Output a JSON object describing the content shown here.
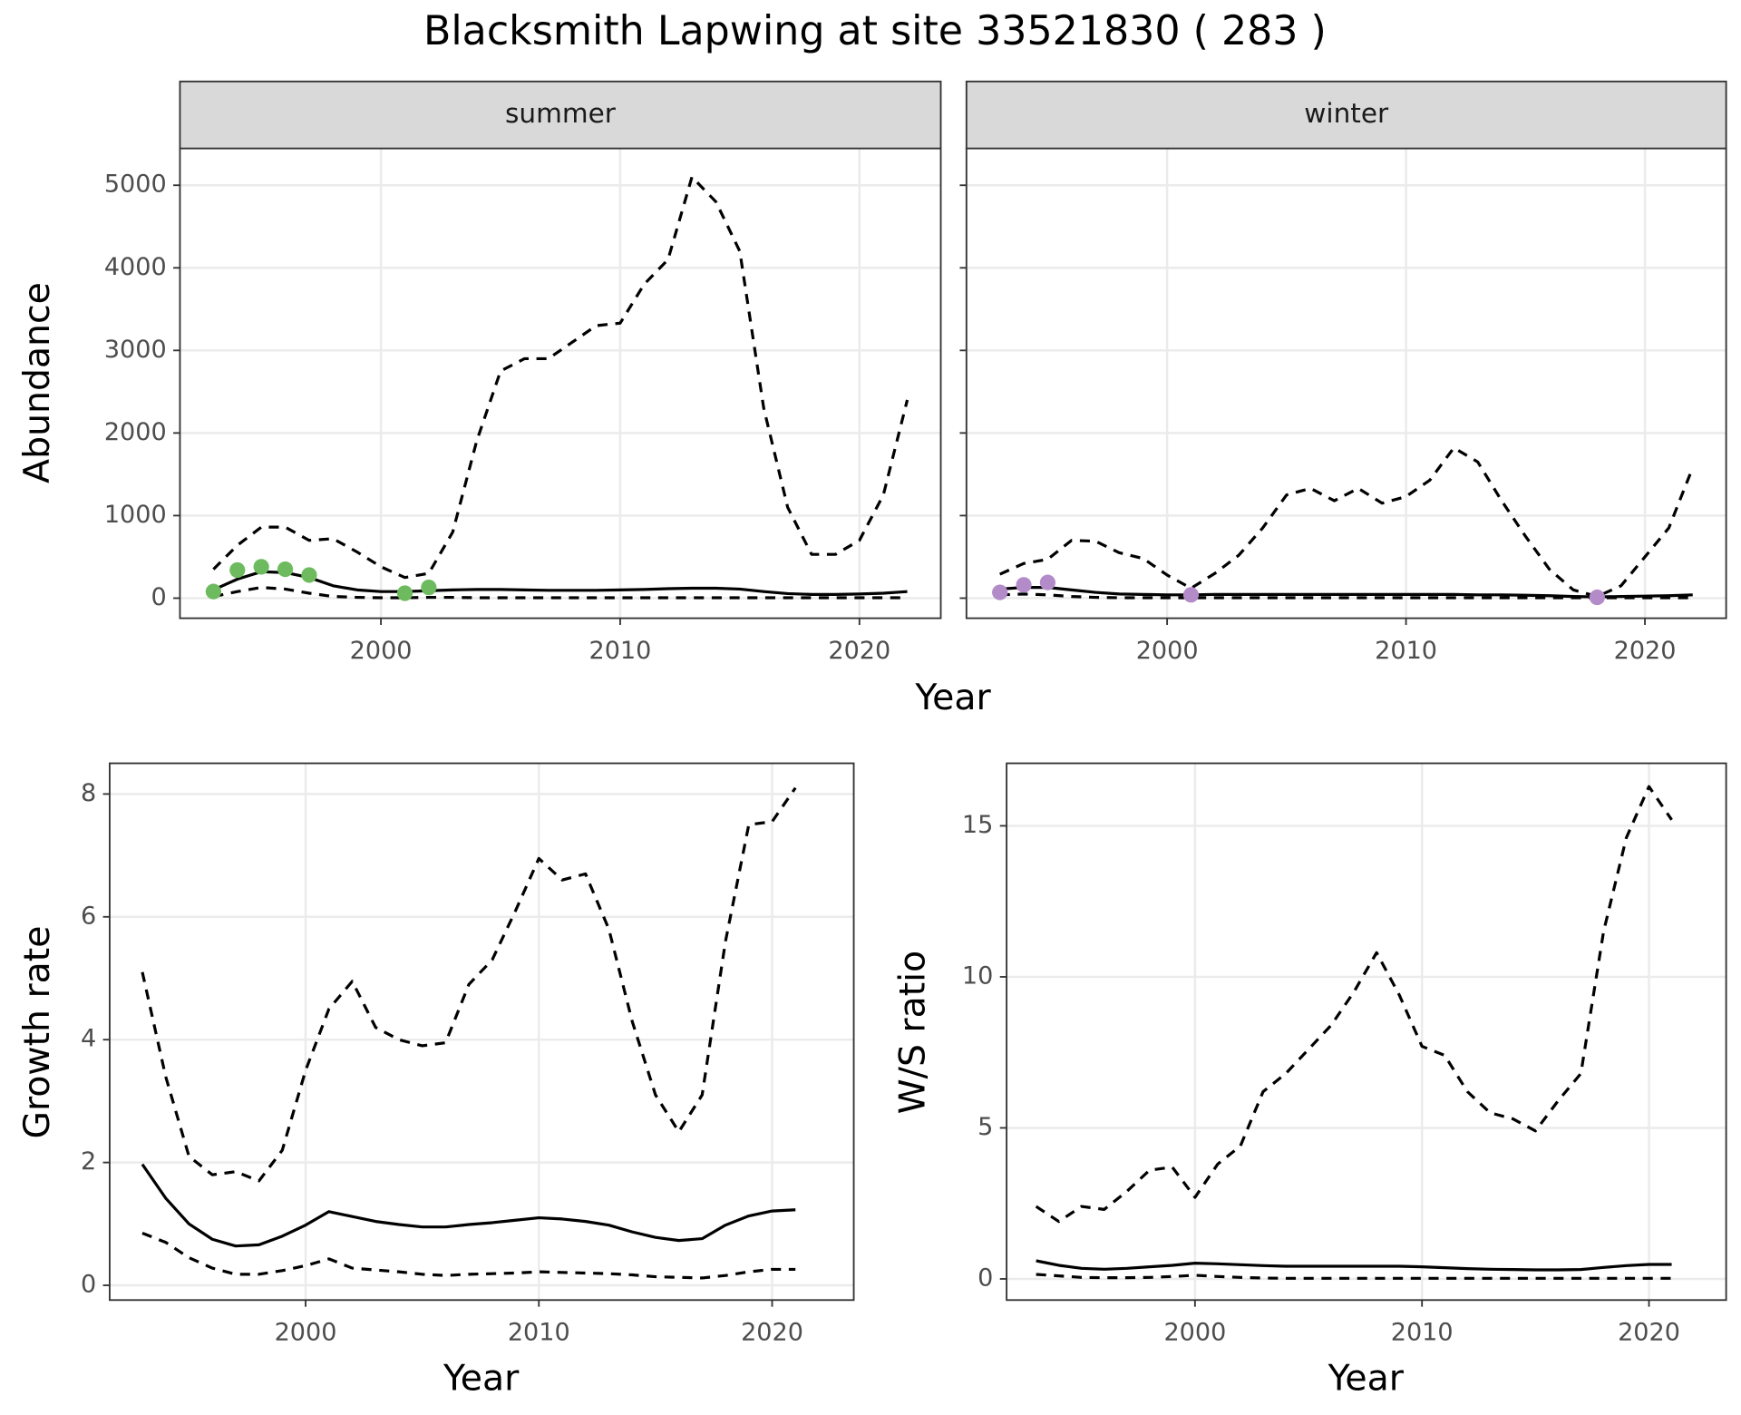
{
  "title": "Blacksmith Lapwing at site 33521830 ( 283 )",
  "facet_xlabel": "Year",
  "facet_ylabel": "Abundance",
  "chart_data": [
    {
      "type": "line",
      "strip": "summer",
      "x": [
        1993,
        1994,
        1995,
        1996,
        1997,
        1998,
        1999,
        2000,
        2001,
        2002,
        2003,
        2004,
        2005,
        2006,
        2007,
        2008,
        2009,
        2010,
        2011,
        2012,
        2013,
        2014,
        2015,
        2016,
        2017,
        2018,
        2019,
        2020,
        2021,
        2022
      ],
      "xlim": [
        1991.6,
        2023.4
      ],
      "xticks": [
        2000,
        2010,
        2020
      ],
      "ylim": [
        -243,
        5446
      ],
      "yticks": [
        0,
        1000,
        2000,
        3000,
        4000,
        5000
      ],
      "grid": true,
      "series": [
        {
          "color": "#000000",
          "dashed": true,
          "values": [
            350,
            640,
            860,
            860,
            700,
            720,
            560,
            380,
            250,
            300,
            800,
            1900,
            2750,
            2900,
            2900,
            3100,
            3300,
            3330,
            3800,
            4100,
            5100,
            4800,
            4200,
            2300,
            1100,
            530,
            530,
            700,
            1250,
            2400
          ]
        },
        {
          "color": "#000000",
          "dashed": false,
          "values": [
            100,
            230,
            320,
            310,
            250,
            150,
            100,
            80,
            80,
            90,
            100,
            105,
            105,
            100,
            95,
            95,
            95,
            100,
            105,
            115,
            120,
            120,
            110,
            80,
            55,
            45,
            45,
            50,
            60,
            80
          ]
        },
        {
          "color": "#000000",
          "dashed": true,
          "values": [
            20,
            80,
            130,
            110,
            60,
            20,
            10,
            5,
            5,
            10,
            10,
            5,
            5,
            5,
            5,
            5,
            5,
            5,
            5,
            5,
            5,
            5,
            5,
            5,
            5,
            5,
            5,
            5,
            5,
            5
          ]
        }
      ],
      "points": {
        "color": "#6dbb5e",
        "x": [
          1993,
          1994,
          1995,
          1996,
          1997,
          2001,
          2002
        ],
        "values": [
          80,
          340,
          380,
          350,
          280,
          60,
          130
        ]
      }
    },
    {
      "type": "line",
      "strip": "winter",
      "ytick_labels": false,
      "x": [
        1993,
        1994,
        1995,
        1996,
        1997,
        1998,
        1999,
        2000,
        2001,
        2002,
        2003,
        2004,
        2005,
        2006,
        2007,
        2008,
        2009,
        2010,
        2011,
        2012,
        2013,
        2014,
        2015,
        2016,
        2017,
        2018,
        2019,
        2020,
        2021,
        2022
      ],
      "xlim": [
        1991.6,
        2023.4
      ],
      "xticks": [
        2000,
        2010,
        2020
      ],
      "ylim": [
        -243,
        5446
      ],
      "yticks": [
        0,
        1000,
        2000,
        3000,
        4000,
        5000
      ],
      "grid": true,
      "series": [
        {
          "color": "#000000",
          "dashed": true,
          "values": [
            290,
            420,
            470,
            700,
            690,
            550,
            480,
            280,
            120,
            300,
            520,
            850,
            1250,
            1330,
            1180,
            1330,
            1150,
            1230,
            1430,
            1820,
            1650,
            1180,
            750,
            350,
            100,
            20,
            150,
            500,
            850,
            1580
          ]
        },
        {
          "color": "#000000",
          "dashed": false,
          "values": [
            110,
            130,
            130,
            100,
            70,
            50,
            45,
            40,
            40,
            45,
            45,
            45,
            45,
            45,
            45,
            45,
            45,
            45,
            45,
            45,
            40,
            40,
            35,
            30,
            20,
            15,
            20,
            25,
            30,
            40
          ]
        },
        {
          "color": "#000000",
          "dashed": true,
          "values": [
            40,
            50,
            40,
            20,
            10,
            5,
            5,
            5,
            5,
            5,
            5,
            5,
            5,
            5,
            5,
            5,
            5,
            5,
            5,
            5,
            5,
            5,
            5,
            5,
            5,
            5,
            5,
            5,
            5,
            5
          ]
        }
      ],
      "points": {
        "color": "#b38bc9",
        "x": [
          1993,
          1994,
          1995,
          2001,
          2018
        ],
        "values": [
          70,
          160,
          190,
          40,
          10
        ]
      }
    },
    {
      "type": "line",
      "xlabel": "Year",
      "ylabel": "Growth rate",
      "x": [
        1993,
        1994,
        1995,
        1996,
        1997,
        1998,
        1999,
        2000,
        2001,
        2002,
        2003,
        2004,
        2005,
        2006,
        2007,
        2008,
        2009,
        2010,
        2011,
        2012,
        2013,
        2014,
        2015,
        2016,
        2017,
        2018,
        2019,
        2020,
        2021
      ],
      "xlim": [
        1991.6,
        2023.5
      ],
      "xticks": [
        2000,
        2010,
        2020
      ],
      "ylim": [
        -0.24,
        8.5
      ],
      "yticks": [
        0,
        2,
        4,
        6,
        8
      ],
      "grid": true,
      "series": [
        {
          "color": "#000000",
          "dashed": true,
          "values": [
            5.1,
            3.4,
            2.1,
            1.8,
            1.85,
            1.7,
            2.2,
            3.5,
            4.5,
            4.95,
            4.2,
            4.0,
            3.9,
            3.95,
            4.9,
            5.3,
            6.1,
            6.95,
            6.6,
            6.7,
            5.8,
            4.3,
            3.1,
            2.5,
            3.1,
            5.6,
            7.5,
            7.55,
            8.1
          ]
        },
        {
          "color": "#000000",
          "dashed": false,
          "values": [
            1.97,
            1.42,
            1.0,
            0.75,
            0.64,
            0.66,
            0.8,
            0.98,
            1.2,
            1.12,
            1.04,
            0.99,
            0.95,
            0.95,
            0.99,
            1.02,
            1.06,
            1.1,
            1.08,
            1.04,
            0.98,
            0.87,
            0.78,
            0.73,
            0.76,
            0.98,
            1.13,
            1.21,
            1.23
          ]
        },
        {
          "color": "#000000",
          "dashed": true,
          "values": [
            0.85,
            0.7,
            0.45,
            0.28,
            0.18,
            0.18,
            0.24,
            0.32,
            0.43,
            0.28,
            0.25,
            0.22,
            0.18,
            0.16,
            0.18,
            0.19,
            0.2,
            0.22,
            0.21,
            0.2,
            0.19,
            0.17,
            0.14,
            0.13,
            0.12,
            0.16,
            0.22,
            0.26,
            0.26
          ]
        }
      ]
    },
    {
      "type": "line",
      "xlabel": "Year",
      "ylabel": "W/S ratio",
      "x": [
        1993,
        1994,
        1995,
        1996,
        1997,
        1998,
        1999,
        2000,
        2001,
        2002,
        2003,
        2004,
        2005,
        2006,
        2007,
        2008,
        2009,
        2010,
        2011,
        2012,
        2013,
        2014,
        2015,
        2016,
        2017,
        2018,
        2019,
        2020,
        2021
      ],
      "xlim": [
        1991.7,
        2023.4
      ],
      "xticks": [
        2000,
        2010,
        2020
      ],
      "ylim": [
        -0.7,
        17.07
      ],
      "yticks": [
        0,
        5,
        10,
        15
      ],
      "grid": true,
      "series": [
        {
          "color": "#000000",
          "dashed": true,
          "values": [
            2.4,
            1.9,
            2.4,
            2.3,
            2.9,
            3.6,
            3.7,
            2.7,
            3.8,
            4.4,
            6.2,
            6.8,
            7.6,
            8.4,
            9.5,
            10.8,
            9.4,
            7.7,
            7.4,
            6.2,
            5.5,
            5.3,
            4.9,
            5.9,
            6.8,
            11.5,
            14.6,
            16.3,
            15.2
          ]
        },
        {
          "color": "#000000",
          "dashed": false,
          "values": [
            0.6,
            0.45,
            0.35,
            0.32,
            0.35,
            0.4,
            0.45,
            0.52,
            0.5,
            0.47,
            0.44,
            0.42,
            0.42,
            0.42,
            0.42,
            0.42,
            0.42,
            0.4,
            0.37,
            0.34,
            0.32,
            0.31,
            0.3,
            0.3,
            0.31,
            0.38,
            0.44,
            0.48,
            0.48
          ]
        },
        {
          "color": "#000000",
          "dashed": true,
          "values": [
            0.15,
            0.1,
            0.05,
            0.04,
            0.04,
            0.05,
            0.08,
            0.12,
            0.08,
            0.05,
            0.03,
            0.02,
            0.02,
            0.02,
            0.02,
            0.02,
            0.02,
            0.02,
            0.02,
            0.02,
            0.02,
            0.02,
            0.02,
            0.02,
            0.02,
            0.02,
            0.02,
            0.02,
            0.02
          ]
        }
      ]
    }
  ]
}
